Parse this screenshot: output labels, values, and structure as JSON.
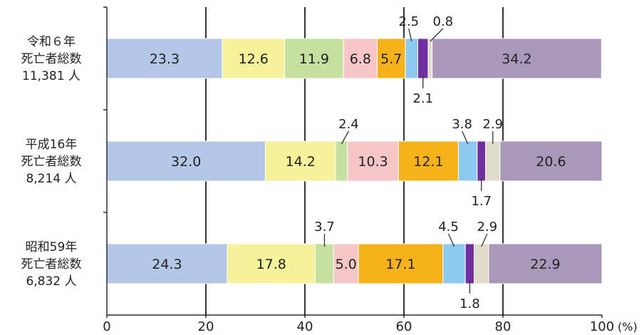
{
  "chart_data": {
    "type": "bar",
    "orientation": "horizontal",
    "stacked": true,
    "unit": "(%)",
    "xlim": [
      0,
      100
    ],
    "xticks": [
      0,
      20,
      40,
      60,
      80,
      100
    ],
    "grid": "vertical lines at ticks",
    "categories": [
      [
        "令和６年",
        "死亡者総数",
        "11,381 人"
      ],
      [
        "平成16年",
        "死亡者総数",
        "8,214 人"
      ],
      [
        "昭和59年",
        "死亡者総数",
        "6,832 人"
      ]
    ],
    "segment_colors": [
      "#b4c7e7",
      "#f5f29b",
      "#c6e0a0",
      "#f7c6c9",
      "#f5b21b",
      "#8ec9f0",
      "#7030a0",
      "#e0dccb",
      "#a898ba"
    ],
    "rows": [
      {
        "values": [
          23.3,
          12.6,
          11.9,
          6.8,
          5.7,
          2.5,
          2.1,
          0.8,
          34.2
        ],
        "labels": [
          "23.3",
          "12.6",
          "11.9",
          "6.8",
          "5.7",
          "2.5",
          "2.1",
          "0.8",
          "34.2"
        ]
      },
      {
        "values": [
          32.0,
          14.2,
          2.4,
          10.3,
          12.1,
          3.8,
          1.7,
          2.9,
          20.6
        ],
        "labels": [
          "32.0",
          "14.2",
          "2.4",
          "10.3",
          "12.1",
          "3.8",
          "1.7",
          "2.9",
          "20.6"
        ]
      },
      {
        "values": [
          24.3,
          17.8,
          3.7,
          5.0,
          17.1,
          4.5,
          1.8,
          2.9,
          22.9
        ],
        "labels": [
          "24.3",
          "17.8",
          "3.7",
          "5.0",
          "17.1",
          "4.5",
          "1.8",
          "2.9",
          "22.9"
        ]
      }
    ]
  }
}
